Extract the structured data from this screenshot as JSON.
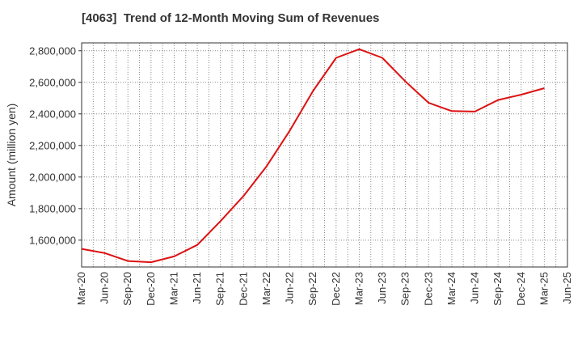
{
  "chart_data": {
    "type": "line",
    "title": "[4063]  Trend of 12-Month Moving Sum of Revenues",
    "xlabel": "",
    "ylabel": "Amount (million yen)",
    "categories": [
      "Mar-20",
      "Jun-20",
      "Sep-20",
      "Dec-20",
      "Mar-21",
      "Jun-21",
      "Sep-21",
      "Dec-21",
      "Mar-22",
      "Jun-22",
      "Sep-22",
      "Dec-22",
      "Mar-23",
      "Jun-23",
      "Sep-23",
      "Dec-23",
      "Mar-24",
      "Jun-24",
      "Sep-24",
      "Dec-24",
      "Mar-25",
      "Jun-25"
    ],
    "ylim": [
      1430000,
      2850000
    ],
    "yticks": [
      1600000,
      1800000,
      2000000,
      2200000,
      2400000,
      2600000,
      2800000
    ],
    "ytick_labels": [
      "1,600,000",
      "1,800,000",
      "2,000,000",
      "2,200,000",
      "2,400,000",
      "2,600,000",
      "2,800,000"
    ],
    "grid": true,
    "series": [
      {
        "color": "#dd1111",
        "values": [
          1545000,
          1518000,
          1468000,
          1460000,
          1497000,
          1570000,
          1720000,
          1880000,
          2070000,
          2295000,
          2545000,
          2755000,
          2810000,
          2755000,
          2605000,
          2470000,
          2418000,
          2415000,
          2488000,
          2522000,
          2563000,
          null
        ]
      }
    ]
  }
}
